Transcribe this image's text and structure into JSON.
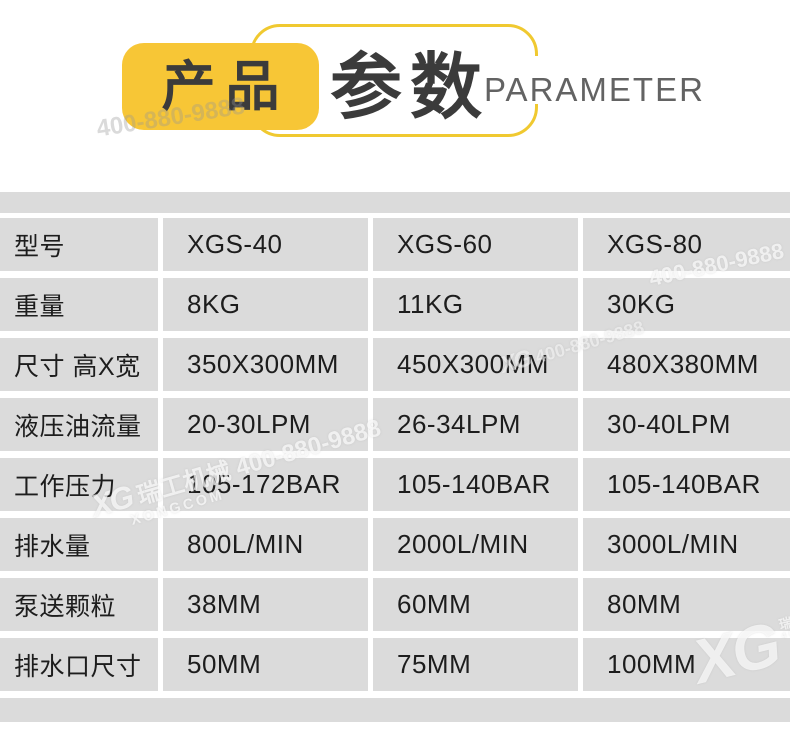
{
  "header": {
    "badge_label": "产品",
    "title": "参数",
    "subtitle": "PARAMETER"
  },
  "colors": {
    "accent_yellow": "#F7C636",
    "outline_yellow": "#F0C930",
    "cell_gray": "#DBDBDB",
    "table_text": "#1D1D1D",
    "header_text": "#3B3B3B",
    "subtitle_gray": "#636363"
  },
  "table": {
    "rows": [
      {
        "label": "型号",
        "values": [
          "XGS-40",
          "XGS-60",
          "XGS-80"
        ]
      },
      {
        "label": "重量",
        "values": [
          "8KG",
          "11KG",
          "30KG"
        ]
      },
      {
        "label": "尺寸 高X宽",
        "values": [
          "350X300MM",
          "450X300MM",
          "480X380MM"
        ]
      },
      {
        "label": "液压油流量",
        "values": [
          "20-30LPM",
          "26-34LPM",
          "30-40LPM"
        ]
      },
      {
        "label": "工作压力",
        "values": [
          "105-172BAR",
          "105-140BAR",
          "105-140BAR"
        ]
      },
      {
        "label": "排水量",
        "values": [
          "800L/MIN",
          "2000L/MIN",
          "3000L/MIN"
        ]
      },
      {
        "label": "泵送颗粒",
        "values": [
          "38MM",
          "60MM",
          "80MM"
        ]
      },
      {
        "label": "排水口尺寸",
        "values": [
          "50MM",
          "75MM",
          "100MM"
        ]
      }
    ]
  },
  "watermark": {
    "brand": "瑞工机械",
    "phone": "400-880-9888",
    "brand_phone": "瑞工机械 400-880-9888",
    "domain": "XONGCOM",
    "logo_monogram": "XG"
  }
}
